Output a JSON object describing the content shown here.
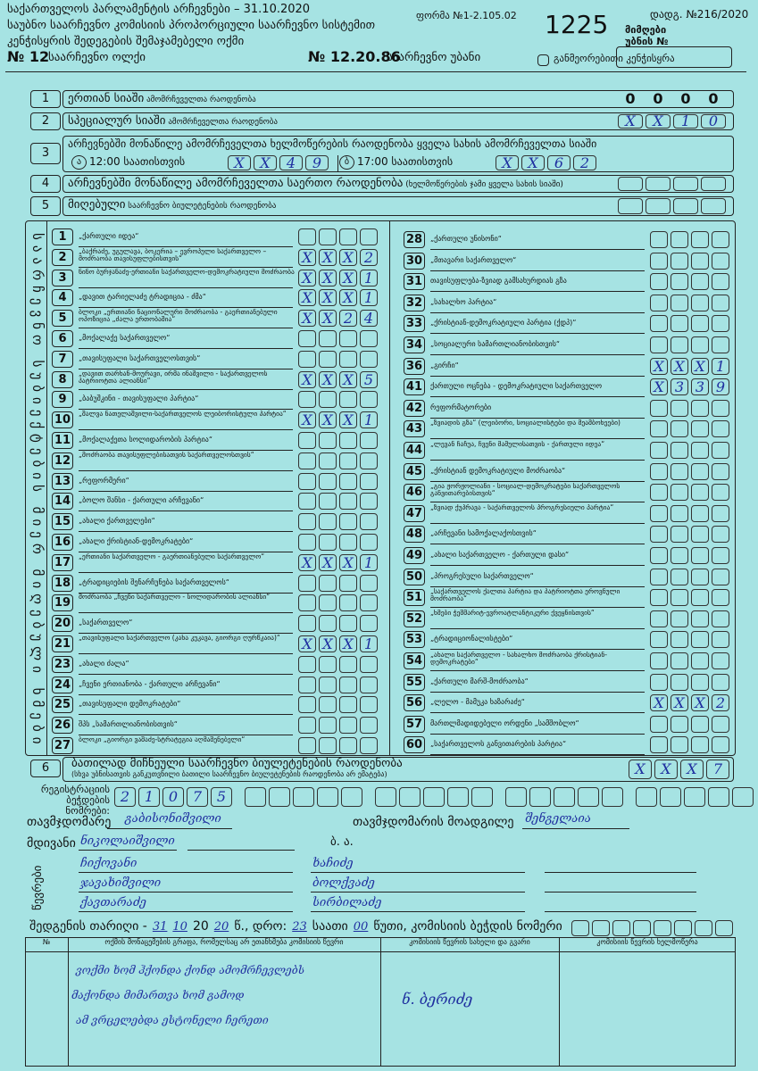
{
  "header": {
    "title_lines": [
      "საქართველოს პარლამენტის არჩევნები – 31.10.2020",
      "საუბნო საარჩევნო კომისიის პროპორციული საარჩევნო სისტემით",
      "კენჭისყრის შედეგების შემაჯამებელი ოქმი"
    ],
    "form_number": "ფორმა №1-2.105.02",
    "protocol_number": "1225",
    "decree": "დადგ. №216/2020",
    "receiving_label": "მიმღები უბნის №",
    "district_number": "№ 12",
    "district_label": "საარჩევნო ოლქი",
    "precinct_number": "№ 12.20.86",
    "precinct_label": "საარჩევნო უბანი",
    "revote_label": "განმეორებითი კენჭისყრა"
  },
  "summary_rows": [
    {
      "number": "1",
      "label": "ერთიან სიაში",
      "label_small": "ამომრჩეველთა რაოდენობა",
      "boxes": [
        "0",
        "0",
        "0",
        "0"
      ]
    },
    {
      "number": "2",
      "label": "სპეციალურ სიაში",
      "label_small": "ამომრჩეველთა რაოდენობა",
      "boxes": [
        "X",
        "X",
        "1",
        "0"
      ]
    },
    {
      "number": "3",
      "label": "არჩევნებში მონაწილე ამომრჩეველთა ხელმოწერების რაოდენობა ყველა სახის ამომრჩეველთა სიაში",
      "times": [
        {
          "marker": "ა",
          "time": "12:00 საათისთვის",
          "boxes": [
            "X",
            "X",
            "4",
            "9"
          ]
        },
        {
          "marker": "ბ",
          "time": "17:00 საათისთვის",
          "boxes": [
            "X",
            "X",
            "6",
            "2"
          ]
        }
      ]
    },
    {
      "number": "4",
      "label": "არჩევნებში მონაწილე ამომრჩეველთა საერთო რაოდენობა",
      "label_small": "(ხელმოწერების ჯამი ყველა სახის სიაში)"
    },
    {
      "number": "5",
      "label": "მიღებული",
      "label_small": "საარჩევნო ბიულეტენების რაოდენობა"
    }
  ],
  "vertical_label": "საარჩევნო სუბიექტების მიერ მიღებული ხმები",
  "parties_left": [
    {
      "number": "1",
      "name": "„ქართული იდეა“"
    },
    {
      "number": "2",
      "name": "„ბაქრაძე, უგულავა, ბოკერია – ევროპული საქართველო – მოძრაობა თავისუფლებისთვის“",
      "boxes": [
        "X",
        "X",
        "X",
        "2"
      ]
    },
    {
      "number": "3",
      "name": "ნინო ბურჯანაძე-ერთიანი საქართველო-დემოკრატიული მოძრაობა",
      "boxes": [
        "X",
        "X",
        "X",
        "1"
      ]
    },
    {
      "number": "4",
      "name": "„დავით ტარიელაძე ტრადიცია - ძმა“",
      "boxes": [
        "X",
        "X",
        "X",
        "1"
      ]
    },
    {
      "number": "5",
      "name": "ბლოკი „ერთიანი ნაციონალური მოძრაობა - გაერთიანებული ოპოზიცია „ძალა ერთობაშია“",
      "boxes": [
        "X",
        "X",
        "2",
        "4"
      ]
    },
    {
      "number": "6",
      "name": "„მოქალაქე საქართველო“"
    },
    {
      "number": "7",
      "name": "„თავისუფალი საქართველოსთვის“"
    },
    {
      "number": "8",
      "name": "„დავით თარხან-მოურავი, ირმა ინაშვილი - საქართველოს პატრიოტთა ალიანსი“",
      "boxes": [
        "X",
        "X",
        "X",
        "5"
      ]
    },
    {
      "number": "9",
      "name": "„ბაბუშკინი - თავისუფალი პარტია“"
    },
    {
      "number": "10",
      "name": "„შალვა ნათელაშვილი-საქართველოს ლეიბორისტული პარტია“",
      "boxes": [
        "X",
        "X",
        "X",
        "1"
      ]
    },
    {
      "number": "11",
      "name": "„მოქალაქეთა სოლიდარობის პარტია“"
    },
    {
      "number": "12",
      "name": "„მოძრაობა თავისუფლებისათვის საქართველოსთვის“"
    },
    {
      "number": "13",
      "name": "„რეფორმერი“"
    },
    {
      "number": "14",
      "name": "„ბოლო შანსი - ქართული არჩევანი“"
    },
    {
      "number": "15",
      "name": "„ახალი ქართველები“"
    },
    {
      "number": "16",
      "name": "„ახალი ქრისტიან-დემოკრატები“"
    },
    {
      "number": "17",
      "name": "„ერთიანი საქართველო - გაერთიანებული საქართველო“",
      "boxes": [
        "X",
        "X",
        "X",
        "1"
      ]
    },
    {
      "number": "18",
      "name": "„ტრადიციების შენარჩუნება საქართველოს“"
    },
    {
      "number": "19",
      "name": "მოძრაობა „ჩვენი საქართველო - სოლიდარობის ალიანსი“"
    },
    {
      "number": "20",
      "name": "„საქართველო“"
    },
    {
      "number": "21",
      "name": "„თავისუფალი საქართველო (კახა კუკავა, გიორგი ღურწკაია)“",
      "boxes": [
        "X",
        "X",
        "X",
        "1"
      ]
    },
    {
      "number": "23",
      "name": "„ახალი ძალა“"
    },
    {
      "number": "24",
      "name": "„ჩვენი ერთიანობა - ქართული არჩევანი“"
    },
    {
      "number": "25",
      "name": "„თავისუფალი დემოკრატები“"
    },
    {
      "number": "26",
      "name": "შპს „სამართლიანობისთვის“"
    },
    {
      "number": "27",
      "name": "ბლოკი „გიორგი ვაშაძე-სტრატეგია აღმაშენებელი“"
    }
  ],
  "parties_right": [
    {
      "number": "28",
      "name": "„ქართული უნისონი“"
    },
    {
      "number": "30",
      "name": "„მთავარი საქართველო“"
    },
    {
      "number": "31",
      "name": "თავისუფლება-ზვიად გამსახურდიას გზა"
    },
    {
      "number": "32",
      "name": "„სახალხო პარტია“"
    },
    {
      "number": "33",
      "name": "„ქრისტიან-დემოკრატიული პარტია (ქდპ)“"
    },
    {
      "number": "34",
      "name": "„სოციალური სამართლიანობისთვის“"
    },
    {
      "number": "36",
      "name": "„გირჩი“",
      "boxes": [
        "X",
        "X",
        "X",
        "1"
      ]
    },
    {
      "number": "41",
      "name": "ქართული ოცნება - დემოკრატიული საქართველო",
      "boxes": [
        "X",
        "3",
        "3",
        "9"
      ]
    },
    {
      "number": "42",
      "name": "რეფორმატორები"
    },
    {
      "number": "43",
      "name": "„ზვიადის გზა“ (ლეიბორი, სოციალისტები და მეამბოხეები)"
    },
    {
      "number": "44",
      "name": "„ლევან ჩაჩუა, ჩვენი მამულისათვის - ქართული იდეა“"
    },
    {
      "number": "45",
      "name": "„ქრისტიან დემოკრატიული მოძრაობა“"
    },
    {
      "number": "46",
      "name": "„გია ჟორჟოლიანი - სოციალ-დემოკრატები საქართველოს განვითარებისთვის“"
    },
    {
      "number": "47",
      "name": "„ზვიად ქუპრავა - საქართველოს პროგრესიული პარტია“"
    },
    {
      "number": "48",
      "name": "„არჩევანი სამოქალაქოსთვის“"
    },
    {
      "number": "49",
      "name": "„ახალი საქართველო - ქართული დასი“"
    },
    {
      "number": "50",
      "name": "„პროგრესული საქართველო“"
    },
    {
      "number": "51",
      "name": "„საქართველოს ქალთა პარტია და პატრიოტთა ეროვნული მოძრაობა“"
    },
    {
      "number": "52",
      "name": "„ხმები ჭეშმარიტ-ევროატლანტიკური ქვეყნისთვის“"
    },
    {
      "number": "53",
      "name": "„ტრადიციონალისტები“"
    },
    {
      "number": "54",
      "name": "„ახალი საქართველო - სახალხო მოძრაობა ქრისტიან-დემოკრატები“"
    },
    {
      "number": "55",
      "name": "„ქართული მარშ-მოძრაობა“"
    },
    {
      "number": "56",
      "name": "„ლელო - მამუკა ხაზარაძე“",
      "boxes": [
        "X",
        "X",
        "X",
        "2"
      ]
    },
    {
      "number": "57",
      "name": "მართლმადიდებელი ორდენი „სამშობლო“"
    },
    {
      "number": "60",
      "name": "„საქართველოს განვითარების პარტია“"
    }
  ],
  "invalid_row": {
    "number": "6",
    "label": "ბათილად მიჩნეული საარჩევნო ბიულეტენების რაოდენობა",
    "note": "(სხვა უბნისათვის განკუთვნილი ბათილი საარჩევნო ბიულეტენების რაოდენობა არ ემატება)",
    "boxes": [
      "X",
      "X",
      "X",
      "7"
    ]
  },
  "seals": {
    "label": "რეგისტრაციის ბეჭდების ნომრები:",
    "digits": [
      "2",
      "1",
      "0",
      "7",
      "5"
    ]
  },
  "signatures": {
    "chair_label": "თავმჯდომარე",
    "chair_name": "გაბისონიშვილი",
    "deputy_label": "თავმჯდომარის მოადგილე",
    "deputy_name": "შენგელაია",
    "secretary_label": "მდივანი",
    "secretary_name": "ნიკოლაიშვილი",
    "members_label": "წევრები",
    "seal_abbrev": "ბ. ა.",
    "members": [
      "ჩიქოვანი",
      "ხაჩიძე",
      "ჯავახიშვილი",
      "ბოლქვაძე",
      "ქავთარაძე",
      "სირბილაძე"
    ]
  },
  "date_line": {
    "prefix": "შედგენის თარიღი -",
    "day": "31",
    "month": "10",
    "year_prefix": "20",
    "year_suffix": "20",
    "time_prefix": "წ., დრო:",
    "hour": "23",
    "hour_label": "საათი",
    "minute": "00",
    "minute_label": "წუთი, კომისიის ბეჭდის ნომერი"
  },
  "dissent_table": {
    "headers": [
      "№",
      "ოქმის მონაცემების გრაფა, რომელსაც არ ეთანხმება კომისიის წევრი",
      "კომისიის წევრის სახელი და გვარი",
      "კომისიის წევრის ხელმოწერა"
    ],
    "note_lines": [
      "ვოქმი ხომ ჰქონდა ქონდ ამომრჩევლებს",
      "მაქონდა მიმართვა ხომ გამოდ",
      "ამ ვრცელებდა ესტონელი ჩერეთი"
    ],
    "member_name": "ნ. ბერიძე"
  }
}
